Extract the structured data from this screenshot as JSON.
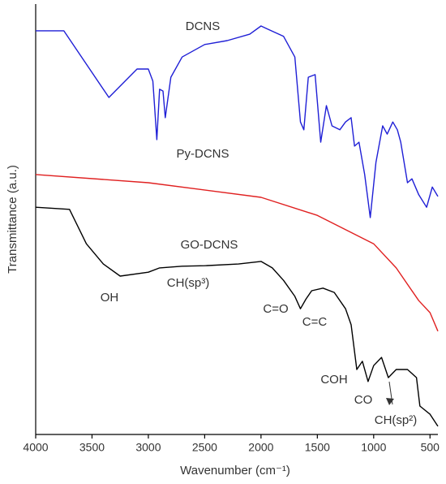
{
  "chart_data": {
    "type": "line",
    "x_label": "Wavenumber (cm⁻¹)",
    "y_label": "Transmittance (a.u.)",
    "xlim": [
      4000,
      430
    ],
    "xticks": [
      4000,
      3500,
      3000,
      2500,
      2000,
      1500,
      1000,
      500
    ],
    "ylim": [
      0,
      100
    ],
    "series": [
      {
        "name": "DCNS",
        "color": "#1f1fd6",
        "x": [
          4000,
          3750,
          3350,
          3100,
          3000,
          2960,
          2925,
          2900,
          2870,
          2850,
          2800,
          2700,
          2500,
          2300,
          2100,
          2000,
          1950,
          1800,
          1700,
          1650,
          1620,
          1580,
          1520,
          1470,
          1420,
          1370,
          1300,
          1250,
          1200,
          1170,
          1130,
          1080,
          1030,
          980,
          920,
          880,
          830,
          790,
          760,
          700,
          660,
          600,
          530,
          480,
          430
        ],
        "values": [
          93.8,
          93.8,
          78.3,
          84.9,
          84.9,
          82.1,
          68.5,
          80.2,
          79.8,
          73.6,
          83.0,
          87.7,
          90.6,
          91.5,
          93.0,
          94.9,
          94.3,
          92.5,
          87.7,
          72.6,
          70.8,
          83.0,
          83.6,
          67.9,
          76.4,
          71.7,
          70.8,
          72.6,
          73.6,
          67.0,
          67.9,
          60.4,
          50.4,
          63.2,
          71.7,
          69.8,
          72.6,
          70.8,
          67.9,
          58.5,
          59.4,
          55.7,
          52.8,
          57.5,
          55.3
        ]
      },
      {
        "name": "Py-DCNS",
        "color": "#e02020",
        "x": [
          4000,
          3000,
          2000,
          1500,
          1000,
          800,
          600,
          500,
          430
        ],
        "values": [
          60.4,
          58.5,
          55.1,
          50.9,
          44.3,
          38.7,
          31.1,
          28.3,
          24.0
        ]
      },
      {
        "name": "GO-DCNS",
        "color": "#000000",
        "x": [
          4000,
          3700,
          3550,
          3400,
          3250,
          3000,
          2900,
          2700,
          2500,
          2200,
          2000,
          1900,
          1800,
          1700,
          1650,
          1600,
          1550,
          1450,
          1350,
          1250,
          1200,
          1150,
          1100,
          1050,
          1000,
          930,
          870,
          800,
          700,
          620,
          590,
          500,
          430
        ],
        "values": [
          52.8,
          52.3,
          44.3,
          39.6,
          36.8,
          37.7,
          38.7,
          39.1,
          39.2,
          39.6,
          40.2,
          38.7,
          35.8,
          32.1,
          29.2,
          31.5,
          33.4,
          34.0,
          33.0,
          29.2,
          25.5,
          15.1,
          17.0,
          12.3,
          16.0,
          17.9,
          13.2,
          15.1,
          15.1,
          13.2,
          6.6,
          4.7,
          1.9
        ]
      }
    ],
    "annotations": [
      "OH",
      "CH(sp³)",
      "C=O",
      "C=C",
      "COH",
      "CO",
      "CH(sp²)"
    ]
  }
}
